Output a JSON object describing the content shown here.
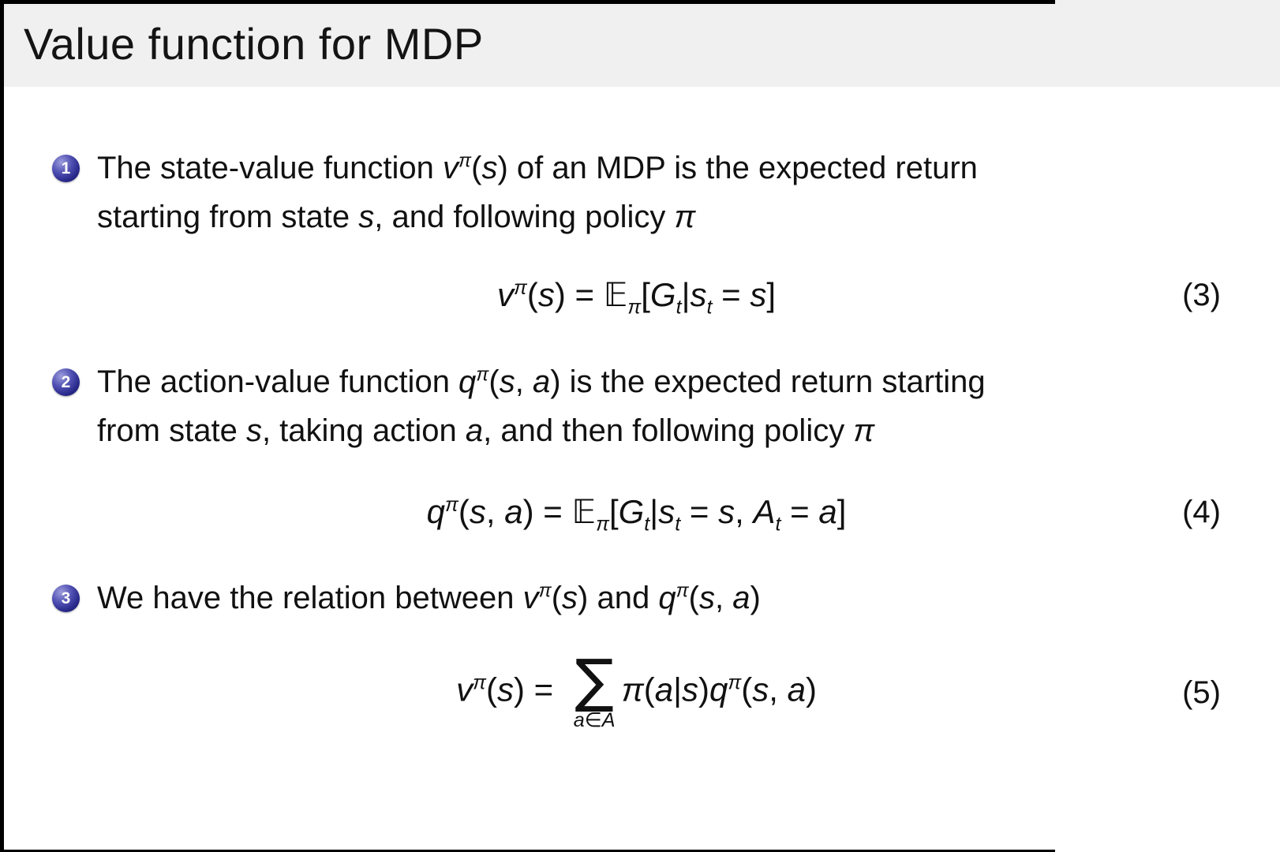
{
  "slide": {
    "title": "Value function for MDP",
    "header_bg": "#f0f0f0",
    "body_bg": "#ffffff",
    "ball_color": "#28288a",
    "text_color": "#111111"
  },
  "bullets": [
    {
      "number": "1",
      "tokens": [
        {
          "k": "t",
          "t": "The state-value function "
        },
        {
          "k": "i",
          "t": "v"
        },
        {
          "k": "sup",
          "t": "π"
        },
        {
          "k": "t",
          "t": "("
        },
        {
          "k": "i",
          "t": "s"
        },
        {
          "k": "t",
          "t": ") of an MDP is the expected return"
        },
        {
          "k": "br"
        },
        {
          "k": "t",
          "t": "starting from state "
        },
        {
          "k": "i",
          "t": "s"
        },
        {
          "k": "t",
          "t": ", and following policy "
        },
        {
          "k": "i",
          "t": "π"
        }
      ]
    },
    {
      "number": "2",
      "tokens": [
        {
          "k": "t",
          "t": "The action-value function "
        },
        {
          "k": "i",
          "t": "q"
        },
        {
          "k": "sup",
          "t": "π"
        },
        {
          "k": "t",
          "t": "("
        },
        {
          "k": "i",
          "t": "s"
        },
        {
          "k": "t",
          "t": ", "
        },
        {
          "k": "i",
          "t": "a"
        },
        {
          "k": "t",
          "t": ") is the expected return starting"
        },
        {
          "k": "br"
        },
        {
          "k": "t",
          "t": "from state "
        },
        {
          "k": "i",
          "t": "s"
        },
        {
          "k": "t",
          "t": ", taking action "
        },
        {
          "k": "i",
          "t": "a"
        },
        {
          "k": "t",
          "t": ", and then following policy "
        },
        {
          "k": "i",
          "t": "π"
        }
      ]
    },
    {
      "number": "3",
      "tokens": [
        {
          "k": "t",
          "t": "We have the relation between "
        },
        {
          "k": "i",
          "t": "v"
        },
        {
          "k": "sup",
          "t": "π"
        },
        {
          "k": "t",
          "t": "("
        },
        {
          "k": "i",
          "t": "s"
        },
        {
          "k": "t",
          "t": ") and "
        },
        {
          "k": "i",
          "t": "q"
        },
        {
          "k": "sup",
          "t": "π"
        },
        {
          "k": "t",
          "t": "("
        },
        {
          "k": "i",
          "t": "s"
        },
        {
          "k": "t",
          "t": ", "
        },
        {
          "k": "i",
          "t": "a"
        },
        {
          "k": "t",
          "t": ")"
        }
      ]
    }
  ],
  "equations": [
    {
      "number": "(3)",
      "tokens": [
        {
          "k": "i",
          "t": "v"
        },
        {
          "k": "sup",
          "t": "π"
        },
        {
          "k": "t",
          "t": "("
        },
        {
          "k": "i",
          "t": "s"
        },
        {
          "k": "t",
          "t": ") = "
        },
        {
          "k": "bb",
          "t": "𝔼"
        },
        {
          "k": "sub",
          "t": "π"
        },
        {
          "k": "t",
          "t": "["
        },
        {
          "k": "i",
          "t": "G"
        },
        {
          "k": "sub",
          "t": "t"
        },
        {
          "k": "t",
          "t": "|"
        },
        {
          "k": "i",
          "t": "s"
        },
        {
          "k": "sub",
          "t": "t"
        },
        {
          "k": "t",
          "t": " = "
        },
        {
          "k": "i",
          "t": "s"
        },
        {
          "k": "t",
          "t": "]"
        }
      ]
    },
    {
      "number": "(4)",
      "tokens": [
        {
          "k": "i",
          "t": "q"
        },
        {
          "k": "sup",
          "t": "π"
        },
        {
          "k": "t",
          "t": "("
        },
        {
          "k": "i",
          "t": "s"
        },
        {
          "k": "t",
          "t": ", "
        },
        {
          "k": "i",
          "t": "a"
        },
        {
          "k": "t",
          "t": ") = "
        },
        {
          "k": "bb",
          "t": "𝔼"
        },
        {
          "k": "sub",
          "t": "π"
        },
        {
          "k": "t",
          "t": "["
        },
        {
          "k": "i",
          "t": "G"
        },
        {
          "k": "sub",
          "t": "t"
        },
        {
          "k": "t",
          "t": "|"
        },
        {
          "k": "i",
          "t": "s"
        },
        {
          "k": "sub",
          "t": "t"
        },
        {
          "k": "t",
          "t": " = "
        },
        {
          "k": "i",
          "t": "s"
        },
        {
          "k": "t",
          "t": ", "
        },
        {
          "k": "i",
          "t": "A"
        },
        {
          "k": "sub",
          "t": "t"
        },
        {
          "k": "t",
          "t": " = "
        },
        {
          "k": "i",
          "t": "a"
        },
        {
          "k": "t",
          "t": "]"
        }
      ]
    },
    {
      "number": "(5)",
      "tokens": [
        {
          "k": "i",
          "t": "v"
        },
        {
          "k": "sup",
          "t": "π"
        },
        {
          "k": "t",
          "t": "("
        },
        {
          "k": "i",
          "t": "s"
        },
        {
          "k": "t",
          "t": ") = "
        },
        {
          "k": "sum",
          "t": "∑",
          "under": [
            {
              "k": "i",
              "t": "a"
            },
            {
              "k": "t",
              "t": "∈"
            },
            {
              "k": "i",
              "t": "A"
            }
          ]
        },
        {
          "k": "i",
          "t": "π"
        },
        {
          "k": "t",
          "t": "("
        },
        {
          "k": "i",
          "t": "a"
        },
        {
          "k": "t",
          "t": "|"
        },
        {
          "k": "i",
          "t": "s"
        },
        {
          "k": "t",
          "t": ")"
        },
        {
          "k": "i",
          "t": "q"
        },
        {
          "k": "sup",
          "t": "π"
        },
        {
          "k": "t",
          "t": "("
        },
        {
          "k": "i",
          "t": "s"
        },
        {
          "k": "t",
          "t": ", "
        },
        {
          "k": "i",
          "t": "a"
        },
        {
          "k": "t",
          "t": ")"
        }
      ]
    }
  ]
}
